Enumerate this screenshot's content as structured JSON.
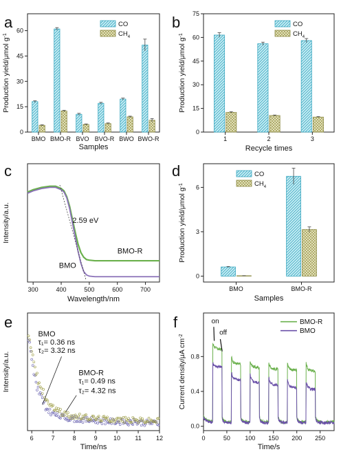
{
  "chart_data": [
    {
      "panel": "a",
      "type": "bar",
      "xlabel": "Samples",
      "ylabel": "Production yield/μmol g",
      "ylabel_sup": "-1",
      "ylim": [
        0,
        70
      ],
      "yticks": [
        0,
        15,
        30,
        45,
        60
      ],
      "categories": [
        "BMO",
        "BMO-R",
        "BVO",
        "BVO-R",
        "BWO",
        "BWO-R"
      ],
      "series": [
        {
          "name": "CO",
          "values": [
            18,
            61,
            10.5,
            17,
            19.5,
            51.5
          ],
          "errors": [
            0.5,
            0.8,
            0.6,
            0.6,
            0.6,
            3.5
          ],
          "color": "#88d4e2"
        },
        {
          "name": "CH",
          "name_sub": "4",
          "values": [
            4,
            12.5,
            4.5,
            5,
            9,
            7
          ],
          "errors": [
            0.3,
            0.4,
            0.3,
            0.4,
            0.4,
            1.0
          ],
          "color": "#c5c890"
        }
      ],
      "legend": "top-right"
    },
    {
      "panel": "b",
      "type": "bar",
      "xlabel": "Recycle times",
      "ylabel": "Production yield/μmol g",
      "ylabel_sup": "-1",
      "ylim": [
        0,
        75
      ],
      "yticks": [
        0,
        15,
        30,
        45,
        60,
        75
      ],
      "categories": [
        "1",
        "2",
        "3"
      ],
      "series": [
        {
          "name": "CO",
          "values": [
            61.5,
            56,
            58
          ],
          "errors": [
            1.5,
            1.0,
            1.3
          ],
          "color": "#88d4e2"
        },
        {
          "name": "CH",
          "name_sub": "4",
          "values": [
            12.5,
            10.5,
            9.5
          ],
          "errors": [
            0.4,
            0.3,
            0.3
          ],
          "color": "#c5c890"
        }
      ],
      "legend": "top-right"
    },
    {
      "panel": "c",
      "type": "line",
      "xlabel": "Wavelength/nm",
      "ylabel": "Intensity/a.u.",
      "xlim": [
        280,
        750
      ],
      "xticks": [
        300,
        400,
        500,
        600,
        700
      ],
      "ylim": [
        0,
        1
      ],
      "annotations": [
        "2.59 eV",
        "BMO",
        "BMO-R"
      ],
      "series": [
        {
          "name": "BMO-R",
          "color": "#6ab04c",
          "x": [
            280,
            300,
            330,
            360,
            380,
            400,
            410,
            420,
            430,
            440,
            450,
            460,
            470,
            480,
            490,
            500,
            520,
            560,
            600,
            650,
            700,
            750
          ],
          "y": [
            0.76,
            0.78,
            0.8,
            0.81,
            0.81,
            0.79,
            0.77,
            0.72,
            0.64,
            0.53,
            0.42,
            0.32,
            0.25,
            0.21,
            0.19,
            0.185,
            0.18,
            0.18,
            0.18,
            0.18,
            0.18,
            0.18
          ]
        },
        {
          "name": "BMO",
          "color": "#8a70b8",
          "x": [
            280,
            300,
            330,
            360,
            380,
            400,
            410,
            420,
            430,
            440,
            450,
            460,
            470,
            480,
            490,
            500,
            520,
            560,
            600,
            650,
            700,
            750
          ],
          "y": [
            0.75,
            0.77,
            0.79,
            0.8,
            0.8,
            0.78,
            0.76,
            0.71,
            0.62,
            0.5,
            0.38,
            0.26,
            0.16,
            0.09,
            0.06,
            0.05,
            0.045,
            0.045,
            0.045,
            0.045,
            0.045,
            0.045
          ]
        }
      ]
    },
    {
      "panel": "d",
      "type": "bar",
      "xlabel": "Samples",
      "ylabel": "Production yield/μmol g",
      "ylabel_sup": "-1",
      "ylim": [
        -0.4,
        7.6
      ],
      "yticks": [
        0,
        3,
        6
      ],
      "categories": [
        "BMO",
        "BMO-R"
      ],
      "series": [
        {
          "name": "CO",
          "values": [
            0.62,
            6.75
          ],
          "errors": [
            0.03,
            0.55
          ],
          "color": "#88d4e2"
        },
        {
          "name": "CH",
          "name_sub": "4",
          "values": [
            0.02,
            3.15
          ],
          "errors": [
            0.01,
            0.18
          ],
          "color": "#c5c890"
        }
      ],
      "legend": "top-left"
    },
    {
      "panel": "e",
      "type": "scatter",
      "xlabel": "Time/ns",
      "ylabel": "Intensity/a.u.",
      "xlim": [
        5.8,
        12
      ],
      "xticks": [
        6,
        7,
        8,
        9,
        10,
        11,
        12
      ],
      "ylim": [
        0,
        1
      ],
      "annotations": [
        {
          "title": "BMO",
          "tau1": "τ₁= 0.36 ns",
          "tau2": "τ₂= 3.32 ns"
        },
        {
          "title": "BMO-R",
          "tau1": "τ₁= 0.49 ns",
          "tau2": "τ₂= 4.32 ns"
        }
      ],
      "series": [
        {
          "name": "BMO",
          "color": "#6a63b0",
          "tau1": 0.36,
          "tau2": 3.32,
          "baseline": 0.05,
          "amp": 0.9
        },
        {
          "name": "BMO-R",
          "color": "#9a9a40",
          "tau1": 0.49,
          "tau2": 4.32,
          "baseline": 0.06,
          "amp": 0.9
        }
      ]
    },
    {
      "panel": "f",
      "type": "line",
      "xlabel": "Time/s",
      "ylabel": "Current density/μA cm",
      "ylabel_sup": "-2",
      "xlim": [
        0,
        280
      ],
      "xticks": [
        0,
        50,
        100,
        150,
        200,
        250
      ],
      "ylim": [
        -0.05,
        1.3
      ],
      "yticks": [
        0.0,
        0.4,
        0.8
      ],
      "annotations": [
        "on",
        "off"
      ],
      "legend": "top-right",
      "on_off_cycles_s": [
        [
          20,
          40
        ],
        [
          60,
          80
        ],
        [
          100,
          120
        ],
        [
          140,
          160
        ],
        [
          180,
          200
        ],
        [
          220,
          240
        ]
      ],
      "series": [
        {
          "name": "BMO-R",
          "color": "#6ab04c",
          "peak_first": 0.95,
          "plateau": [
            0.88,
            0.76,
            0.72,
            0.7,
            0.69,
            0.68
          ],
          "dark": 0.05
        },
        {
          "name": "BMO",
          "color": "#6a50a8",
          "peak_first": 0.72,
          "plateau": [
            0.68,
            0.58,
            0.55,
            0.52,
            0.49,
            0.47
          ],
          "dark": 0.04
        }
      ]
    }
  ],
  "panel_labels": [
    "a",
    "b",
    "c",
    "d",
    "e",
    "f"
  ]
}
